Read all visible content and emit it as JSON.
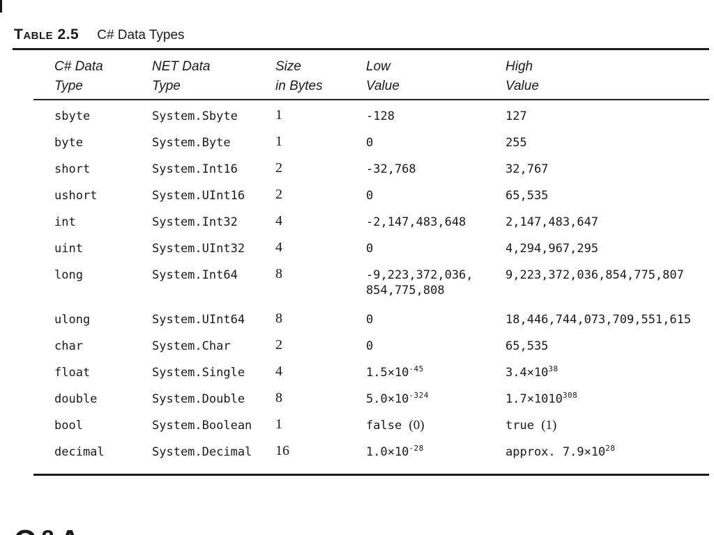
{
  "page": {
    "table_label": "Table",
    "table_number": "2.5",
    "table_title": "C# Data Types",
    "bottom_heading": "Q&A"
  },
  "table": {
    "columns": [
      {
        "line1": "C# Data",
        "line2": "Type"
      },
      {
        "line1": "NET Data",
        "line2": "Type"
      },
      {
        "line1": "Size",
        "line2": "in Bytes"
      },
      {
        "line1": "Low",
        "line2": "Value"
      },
      {
        "line1": "High",
        "line2": "Value"
      }
    ],
    "rows": [
      {
        "cs": "sbyte",
        "net": "System.Sbyte",
        "size": "1",
        "low": [
          {
            "t": "-128"
          }
        ],
        "high": [
          {
            "t": "127"
          }
        ]
      },
      {
        "cs": "byte",
        "net": "System.Byte",
        "size": "1",
        "low": [
          {
            "t": "0"
          }
        ],
        "high": [
          {
            "t": "255"
          }
        ]
      },
      {
        "cs": "short",
        "net": "System.Int16",
        "size": "2",
        "low": [
          {
            "t": "-32,768"
          }
        ],
        "high": [
          {
            "t": "32,767"
          }
        ]
      },
      {
        "cs": "ushort",
        "net": "System.UInt16",
        "size": "2",
        "low": [
          {
            "t": "0"
          }
        ],
        "high": [
          {
            "t": "65,535"
          }
        ]
      },
      {
        "cs": "int",
        "net": "System.Int32",
        "size": "4",
        "low": [
          {
            "t": "-2,147,483,648"
          }
        ],
        "high": [
          {
            "t": "2,147,483,647"
          }
        ]
      },
      {
        "cs": "uint",
        "net": "System.UInt32",
        "size": "4",
        "low": [
          {
            "t": "0"
          }
        ],
        "high": [
          {
            "t": "4,294,967,295"
          }
        ]
      },
      {
        "cs": "long",
        "net": "System.Int64",
        "size": "8",
        "tall": true,
        "low": [
          {
            "t": "-9,223,372,036,"
          },
          {
            "br": true
          },
          {
            "t": "854,775,808"
          }
        ],
        "high": [
          {
            "t": "9,223,372,036,854,775,807"
          }
        ]
      },
      {
        "cs": "ulong",
        "net": "System.UInt64",
        "size": "8",
        "low": [
          {
            "t": "0"
          }
        ],
        "high": [
          {
            "t": "18,446,744,073,709,551,615"
          }
        ]
      },
      {
        "cs": "char",
        "net": "System.Char",
        "size": "2",
        "low": [
          {
            "t": "0"
          }
        ],
        "high": [
          {
            "t": "65,535"
          }
        ]
      },
      {
        "cs": "float",
        "net": "System.Single",
        "size": "4",
        "low": [
          {
            "t": "1.5×10"
          },
          {
            "t": "-45",
            "sup": true
          }
        ],
        "high": [
          {
            "t": "3.4×10"
          },
          {
            "t": "38",
            "sup": true
          }
        ]
      },
      {
        "cs": "double",
        "net": "System.Double",
        "size": "8",
        "low": [
          {
            "t": "5.0×10"
          },
          {
            "t": "-324",
            "sup": true
          }
        ],
        "high": [
          {
            "t": "1.7×1010"
          },
          {
            "t": "308",
            "sup": true
          }
        ]
      },
      {
        "cs": "bool",
        "net": "System.Boolean",
        "size": "1",
        "low": [
          {
            "t": "false "
          },
          {
            "t": "(0)",
            "serif": true
          }
        ],
        "high": [
          {
            "t": "true "
          },
          {
            "t": "(1)",
            "serif": true
          }
        ]
      },
      {
        "cs": "decimal",
        "net": "System.Decimal",
        "size": "16",
        "low": [
          {
            "t": "1.0×10"
          },
          {
            "t": "-28",
            "sup": true
          }
        ],
        "high": [
          {
            "t": "approx. 7.9×10"
          },
          {
            "t": "28",
            "sup": true
          }
        ]
      }
    ]
  }
}
